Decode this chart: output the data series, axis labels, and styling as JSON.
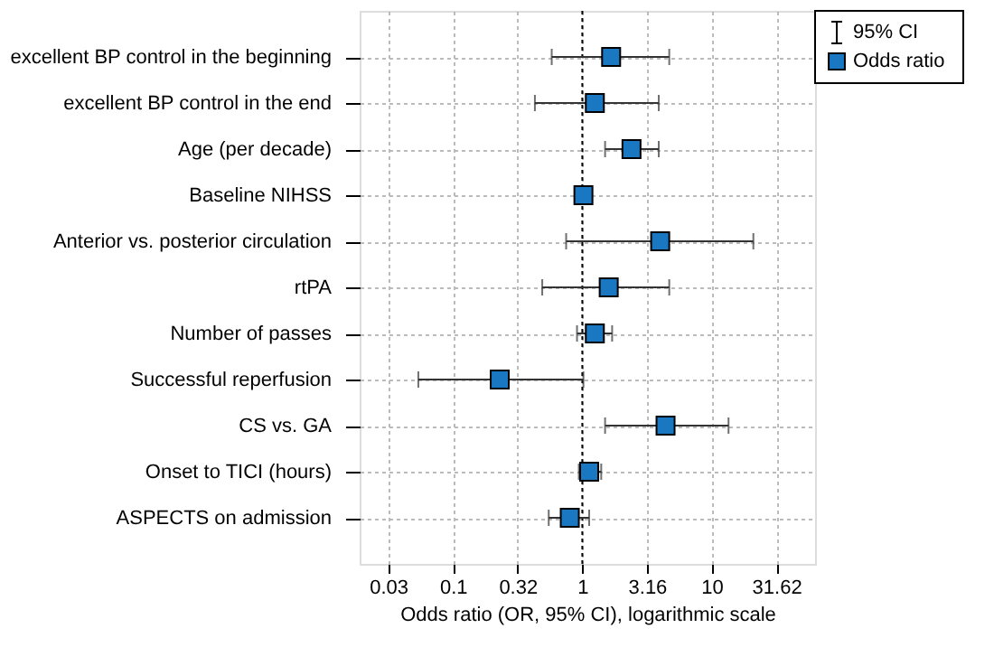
{
  "chart_data": {
    "type": "scatter",
    "orientation": "horizontal",
    "categories": [
      "excellent BP control in the beginning",
      "excellent BP control in the end",
      "Age (per decade)",
      "Baseline NIHSS",
      "Anterior vs. posterior circulation",
      "rtPA",
      "Number of passes",
      "Successful reperfusion",
      "CS vs. GA",
      "Onset to TICI (hours)",
      "ASPECTS on admission"
    ],
    "series": [
      {
        "name": "Odds ratio",
        "color": "#1a78c2",
        "values": [
          1.67,
          1.25,
          2.4,
          1.02,
          4.0,
          1.6,
          1.25,
          0.23,
          4.4,
          1.13,
          0.8
        ],
        "errors": [
          [
            0.58,
            4.7
          ],
          [
            0.43,
            3.9
          ],
          [
            1.5,
            3.9
          ],
          null,
          [
            0.75,
            21
          ],
          [
            0.49,
            4.7
          ],
          [
            0.91,
            1.7
          ],
          [
            0.054,
            1.02
          ],
          [
            1.5,
            13.5
          ],
          [
            0.94,
            1.4
          ],
          [
            0.55,
            1.13
          ]
        ]
      }
    ],
    "xlabel": "Odds ratio (OR, 95% CI), logarithmic scale",
    "log": "x",
    "xlim": [
      0.019,
      63
    ],
    "xticks": [
      {
        "value": 0.0316,
        "label": "0.03"
      },
      0.1,
      {
        "value": 0.316,
        "label": "0.32"
      },
      1,
      3.16,
      10,
      31.62
    ],
    "ref_lines": [
      {
        "axis": "x",
        "value": 1,
        "color": "#000000",
        "line_style": "dotted"
      }
    ],
    "annotations": [
      "95% CI"
    ],
    "grid": true,
    "legend": "top right",
    "marker": "square"
  }
}
